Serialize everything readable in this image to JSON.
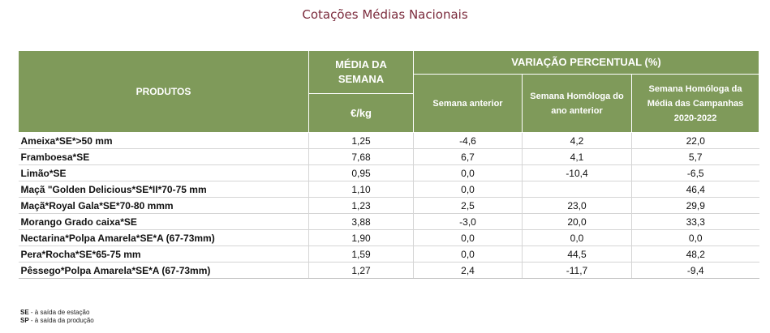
{
  "title": "Cotações Médias Nacionais",
  "header": {
    "produtos": "PRODUTOS",
    "media": "MÉDIA DA SEMANA",
    "unit": "€/kg",
    "variacao": "VARIAÇÃO PERCENTUAL (%)",
    "sub": [
      "Semana anterior",
      "Semana Homóloga do ano anterior",
      "Semana Homóloga da Média das Campanhas 2020-2022"
    ]
  },
  "rows": [
    {
      "produto": "Ameixa*SE*>50 mm",
      "media": "1,25",
      "anterior": "-4,6",
      "homologa": "4,2",
      "campanhas": "22,0"
    },
    {
      "produto": "Framboesa*SE",
      "media": "7,68",
      "anterior": "6,7",
      "homologa": "4,1",
      "campanhas": "5,7"
    },
    {
      "produto": "Limão*SE",
      "media": "0,95",
      "anterior": "0,0",
      "homologa": "-10,4",
      "campanhas": "-6,5"
    },
    {
      "produto": "Maçã \"Golden Delicious*SE*II*70-75 mm",
      "media": "1,10",
      "anterior": "0,0",
      "homologa": "",
      "campanhas": "46,4"
    },
    {
      "produto": "Maçã*Royal Gala*SE*70-80 mmm",
      "media": "1,23",
      "anterior": "2,5",
      "homologa": "23,0",
      "campanhas": "29,9"
    },
    {
      "produto": "Morango Grado caixa*SE",
      "media": "3,88",
      "anterior": "-3,0",
      "homologa": "20,0",
      "campanhas": "33,3"
    },
    {
      "produto": "Nectarina*Polpa Amarela*SE*A (67-73mm)",
      "media": "1,90",
      "anterior": "0,0",
      "homologa": "0,0",
      "campanhas": "0,0"
    },
    {
      "produto": "Pera*Rocha*SE*65-75 mm",
      "media": "1,59",
      "anterior": "0,0",
      "homologa": "44,5",
      "campanhas": "48,2"
    },
    {
      "produto": "Pêssego*Polpa Amarela*SE*A (67-73mm)",
      "media": "1,27",
      "anterior": "2,4",
      "homologa": "-11,7",
      "campanhas": "-9,4"
    }
  ],
  "footnotes": [
    {
      "abbr": "SE",
      "text": " - à saída de estação"
    },
    {
      "abbr": "SP",
      "text": " - à saída da produção"
    }
  ]
}
